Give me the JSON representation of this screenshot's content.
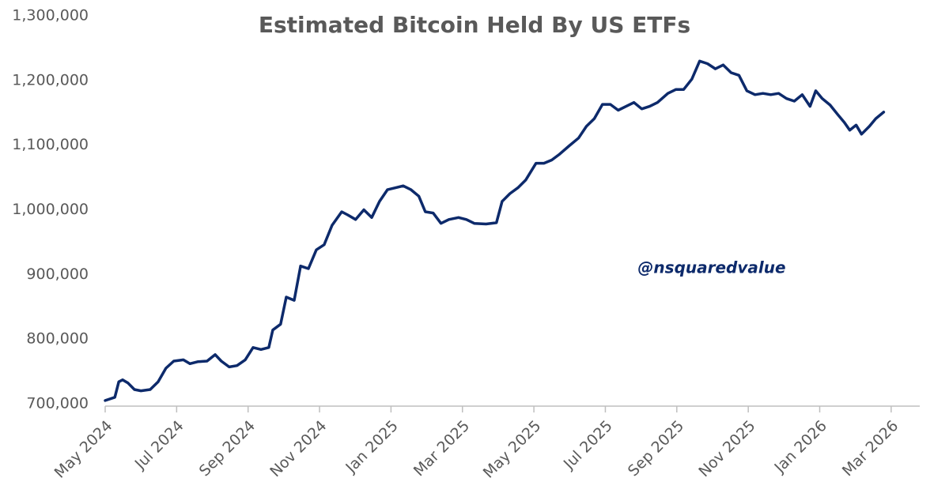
{
  "chart_data": {
    "type": "line",
    "title": "Estimated Bitcoin Held By US ETFs",
    "annotation": "@nsquaredvalue",
    "color": "#0d2a6b",
    "grid": false,
    "xlim": [
      0,
      22.8
    ],
    "xticks": [
      {
        "value": 0,
        "label": "May 2024"
      },
      {
        "value": 2,
        "label": "Jul 2024"
      },
      {
        "value": 4,
        "label": "Sep 2024"
      },
      {
        "value": 6,
        "label": "Nov 2024"
      },
      {
        "value": 8,
        "label": "Jan 2025"
      },
      {
        "value": 10,
        "label": "Mar 2025"
      },
      {
        "value": 12,
        "label": "May 2025"
      },
      {
        "value": 14,
        "label": "Jul 2025"
      },
      {
        "value": 16,
        "label": "Sep 2025"
      },
      {
        "value": 18,
        "label": "Nov 2025"
      },
      {
        "value": 20,
        "label": "Jan 2026"
      },
      {
        "value": 22,
        "label": "Mar 2026"
      }
    ],
    "ylim": [
      700000,
      1300000
    ],
    "yticks": [
      {
        "value": 700000,
        "label": "700,000"
      },
      {
        "value": 800000,
        "label": "800,000"
      },
      {
        "value": 900000,
        "label": "900,000"
      },
      {
        "value": 1000000,
        "label": "1,000,000"
      },
      {
        "value": 1100000,
        "label": "1,100,000"
      },
      {
        "value": 1200000,
        "label": "1,200,000"
      },
      {
        "value": 1300000,
        "label": "1,300,000"
      }
    ],
    "x": [
      0,
      0.27,
      0.38,
      0.49,
      0.64,
      0.82,
      1.0,
      1.26,
      1.48,
      1.7,
      1.92,
      2.19,
      2.37,
      2.59,
      2.85,
      3.08,
      3.25,
      3.47,
      3.69,
      3.92,
      4.14,
      4.36,
      4.58,
      4.69,
      4.91,
      5.07,
      5.29,
      5.47,
      5.69,
      5.91,
      6.13,
      6.35,
      6.62,
      6.79,
      7.01,
      7.24,
      7.46,
      7.68,
      7.9,
      8.12,
      8.34,
      8.56,
      8.78,
      8.96,
      9.18,
      9.4,
      9.62,
      9.89,
      10.11,
      10.33,
      10.66,
      10.95,
      11.11,
      11.33,
      11.55,
      11.77,
      12.06,
      12.28,
      12.5,
      12.72,
      12.99,
      13.25,
      13.47,
      13.69,
      13.92,
      14.14,
      14.36,
      14.58,
      14.8,
      15.02,
      15.24,
      15.46,
      15.75,
      15.97,
      16.19,
      16.42,
      16.64,
      16.86,
      17.08,
      17.3,
      17.52,
      17.74,
      17.96,
      18.19,
      18.41,
      18.63,
      18.85,
      19.07,
      19.29,
      19.51,
      19.73,
      19.89,
      20.07,
      20.29,
      20.51,
      20.69,
      20.84,
      21.02,
      21.17,
      21.39,
      21.57,
      21.79
    ],
    "values": [
      705000,
      710000,
      734000,
      737000,
      732000,
      722000,
      720000,
      722000,
      734000,
      755000,
      766000,
      768000,
      762000,
      765000,
      766000,
      776000,
      766000,
      757000,
      759000,
      768000,
      787000,
      784000,
      787000,
      814000,
      823000,
      865000,
      860000,
      913000,
      909000,
      938000,
      946000,
      976000,
      997000,
      992000,
      985000,
      1000000,
      988000,
      1013000,
      1031000,
      1034000,
      1037000,
      1031000,
      1021000,
      997000,
      995000,
      979000,
      985000,
      988000,
      985000,
      979000,
      978000,
      980000,
      1013000,
      1025000,
      1034000,
      1046000,
      1072000,
      1072000,
      1077000,
      1086000,
      1099000,
      1111000,
      1129000,
      1141000,
      1163000,
      1163000,
      1154000,
      1160000,
      1166000,
      1156000,
      1160000,
      1166000,
      1180000,
      1186000,
      1186000,
      1202000,
      1230000,
      1226000,
      1218000,
      1224000,
      1212000,
      1208000,
      1184000,
      1178000,
      1180000,
      1178000,
      1180000,
      1172000,
      1168000,
      1178000,
      1160000,
      1184000,
      1172000,
      1162000,
      1147000,
      1135000,
      1123000,
      1131000,
      1117000,
      1129000,
      1141000,
      1151000
    ]
  }
}
